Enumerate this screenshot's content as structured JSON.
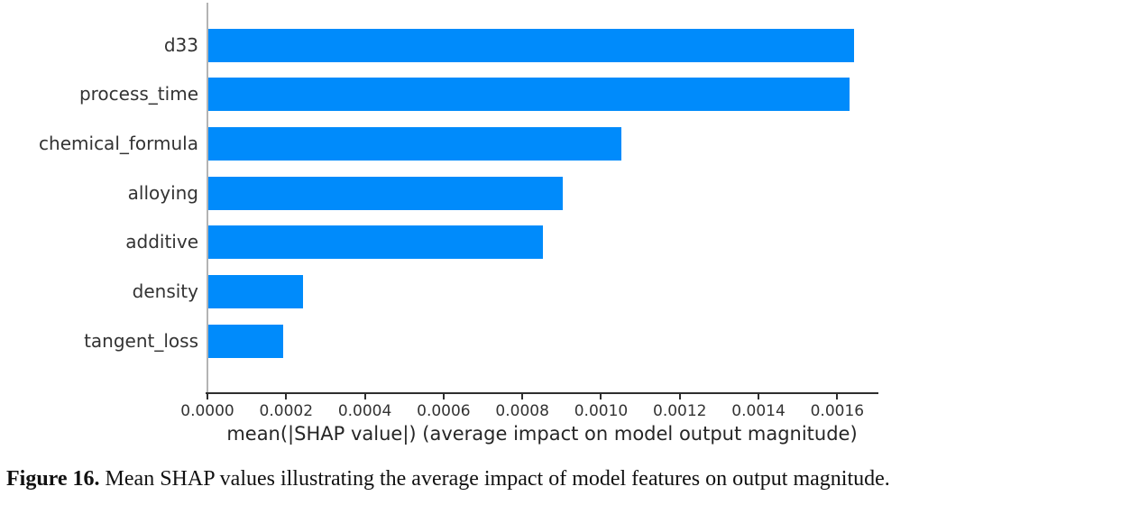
{
  "figure": {
    "caption_label": "Figure 16.",
    "caption_text": " Mean SHAP values illustrating the average impact of model features on output magnitude."
  },
  "chart_data": {
    "type": "bar",
    "orientation": "horizontal",
    "title": "",
    "xlabel": "mean(|SHAP value|) (average impact on model output magnitude)",
    "ylabel": "",
    "categories": [
      "d33",
      "process_time",
      "chemical_formula",
      "alloying",
      "additive",
      "density",
      "tangent_loss"
    ],
    "values": [
      0.00164,
      0.00163,
      0.00105,
      0.0009,
      0.00085,
      0.00024,
      0.00019
    ],
    "xlim": [
      0,
      0.0017
    ],
    "xticks": [
      0.0,
      0.0002,
      0.0004,
      0.0006,
      0.0008,
      0.001,
      0.0012,
      0.0014,
      0.0016
    ],
    "xtick_labels": [
      "0.0000",
      "0.0002",
      "0.0004",
      "0.0006",
      "0.0008",
      "0.0010",
      "0.0012",
      "0.0014",
      "0.0016"
    ],
    "grid": false,
    "legend": null,
    "bar_color": "#008bfb",
    "left_spine_color": "#b4b4b4",
    "bottom_spine_color": "#2e2e2e",
    "label_color": "#333333"
  }
}
